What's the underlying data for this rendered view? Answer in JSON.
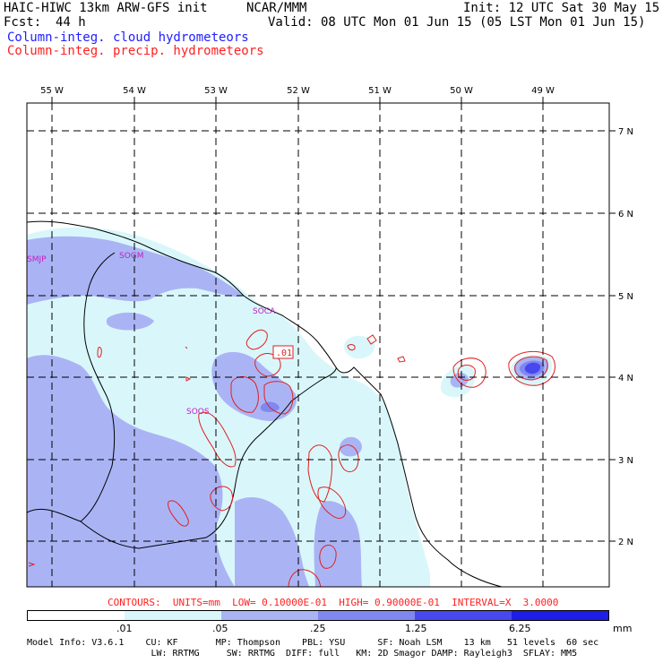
{
  "header": {
    "model": "HAIC-HIWC 13km ARW-GFS init",
    "org": "NCAR/MMM",
    "init": "Init: 12 UTC Sat 30 May 15",
    "fcst_label": "Fcst:",
    "fcst_value": "44 h",
    "valid": "Valid: 08 UTC Mon 01 Jun 15 (05 LST Mon 01 Jun 15)",
    "field_blue": "Column-integ. cloud hydrometeors",
    "field_red": "Column-integ. precip. hydrometeors"
  },
  "map": {
    "lon_labels": [
      "55 W",
      "54 W",
      "53 W",
      "52 W",
      "51 W",
      "50 W",
      "49 W"
    ],
    "lat_labels": [
      "7 N",
      "6 N",
      "5 N",
      "4 N",
      "3 N",
      "2 N"
    ],
    "station_labels": [
      "SMJP",
      "SOGM",
      "SOCA",
      "SOOS"
    ],
    "contour_label": ".01",
    "colors": {
      "shade1": "#d9f7fb",
      "shade2": "#aab4f5",
      "shade3": "#8088f0",
      "shade4": "#4848f0",
      "shade5": "#1e1ee8",
      "precip_contour": "#e02020"
    }
  },
  "contour_info": "CONTOURS:  UNITS=mm  LOW= 0.10000E-01  HIGH= 0.90000E-01  INTERVAL=X  3.0000",
  "colorbar": {
    "labels": [
      ".01",
      ".05",
      ".25",
      "1.25",
      "6.25"
    ],
    "units": "mm",
    "colors": [
      "#ffffff",
      "#d9f7fb",
      "#aab4f5",
      "#8088f0",
      "#4848f0",
      "#1e1ee8"
    ]
  },
  "model_info": {
    "line1": "Model Info: V3.6.1    CU: KF       MP: Thompson    PBL: YSU      SF: Noah LSM    13 km   51 levels  60 sec",
    "line2": "                       LW: RRTMG     SW: RRTMG  DIFF: full   KM: 2D Smagor DAMP: Rayleigh3  SFLAY: MM5"
  }
}
